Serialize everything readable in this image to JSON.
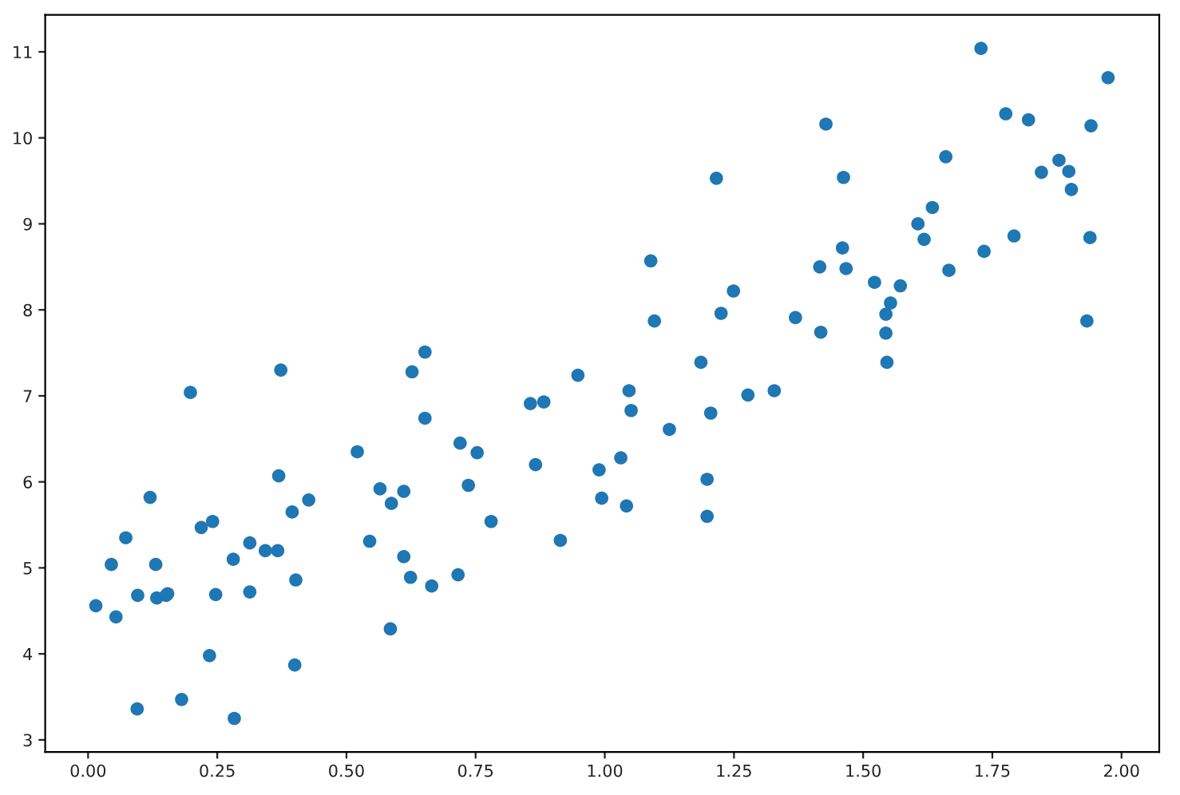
{
  "chart_data": {
    "type": "scatter",
    "color": "#1f77b4",
    "marker": "circle",
    "x": [
      0.015,
      0.045,
      0.054,
      0.073,
      0.096,
      0.095,
      0.12,
      0.131,
      0.133,
      0.151,
      0.154,
      0.181,
      0.198,
      0.219,
      0.235,
      0.241,
      0.247,
      0.281,
      0.283,
      0.313,
      0.313,
      0.343,
      0.367,
      0.369,
      0.373,
      0.395,
      0.402,
      0.4,
      0.427,
      0.521,
      0.545,
      0.565,
      0.587,
      0.585,
      0.611,
      0.611,
      0.627,
      0.624,
      0.652,
      0.652,
      0.665,
      0.72,
      0.716,
      0.736,
      0.753,
      0.78,
      0.856,
      0.866,
      0.882,
      0.914,
      0.948,
      0.989,
      0.994,
      1.031,
      1.042,
      1.047,
      1.051,
      1.089,
      1.096,
      1.125,
      1.186,
      1.198,
      1.205,
      1.198,
      1.216,
      1.225,
      1.249,
      1.277,
      1.328,
      1.369,
      1.416,
      1.418,
      1.428,
      1.46,
      1.462,
      1.467,
      1.522,
      1.544,
      1.544,
      1.546,
      1.553,
      1.572,
      1.606,
      1.618,
      1.634,
      1.66,
      1.666,
      1.728,
      1.734,
      1.776,
      1.792,
      1.82,
      1.845,
      1.879,
      1.898,
      1.903,
      1.933,
      1.939,
      1.941,
      1.974
    ],
    "values": [
      4.56,
      5.04,
      4.43,
      5.35,
      4.68,
      3.36,
      5.82,
      5.04,
      4.65,
      4.68,
      4.7,
      3.47,
      7.04,
      5.47,
      3.98,
      5.54,
      4.69,
      5.1,
      3.25,
      5.29,
      4.72,
      5.2,
      5.2,
      6.07,
      7.3,
      5.65,
      4.86,
      3.87,
      5.79,
      6.35,
      5.31,
      5.92,
      5.75,
      4.29,
      5.89,
      5.13,
      7.28,
      4.89,
      7.51,
      6.74,
      4.79,
      6.45,
      4.92,
      5.96,
      6.34,
      5.54,
      6.91,
      6.2,
      6.93,
      5.32,
      7.24,
      6.14,
      5.81,
      6.28,
      5.72,
      7.06,
      6.83,
      8.57,
      7.87,
      6.61,
      7.39,
      6.03,
      6.8,
      5.6,
      9.53,
      7.96,
      8.22,
      7.01,
      7.06,
      7.91,
      8.5,
      7.74,
      10.16,
      8.72,
      9.54,
      8.48,
      8.32,
      7.95,
      7.73,
      7.39,
      8.08,
      8.28,
      9.0,
      8.82,
      9.19,
      9.78,
      8.46,
      11.04,
      8.68,
      10.28,
      8.86,
      10.21,
      9.6,
      9.74,
      9.61,
      9.4,
      7.87,
      8.84,
      10.14,
      10.7
    ],
    "xlim": [
      -0.083,
      2.073
    ],
    "ylim": [
      2.86,
      11.43
    ],
    "xticks": [
      {
        "value": 0,
        "label": "0.00"
      },
      {
        "value": 0.25,
        "label": "0.25"
      },
      {
        "value": 0.5,
        "label": "0.50"
      },
      {
        "value": 0.75,
        "label": "0.75"
      },
      {
        "value": 1,
        "label": "1.00"
      },
      {
        "value": 1.25,
        "label": "1.25"
      },
      {
        "value": 1.5,
        "label": "1.50"
      },
      {
        "value": 1.75,
        "label": "1.75"
      },
      {
        "value": 2,
        "label": "2.00"
      }
    ],
    "yticks": [
      3,
      4,
      5,
      6,
      7,
      8,
      9,
      10,
      11
    ]
  }
}
